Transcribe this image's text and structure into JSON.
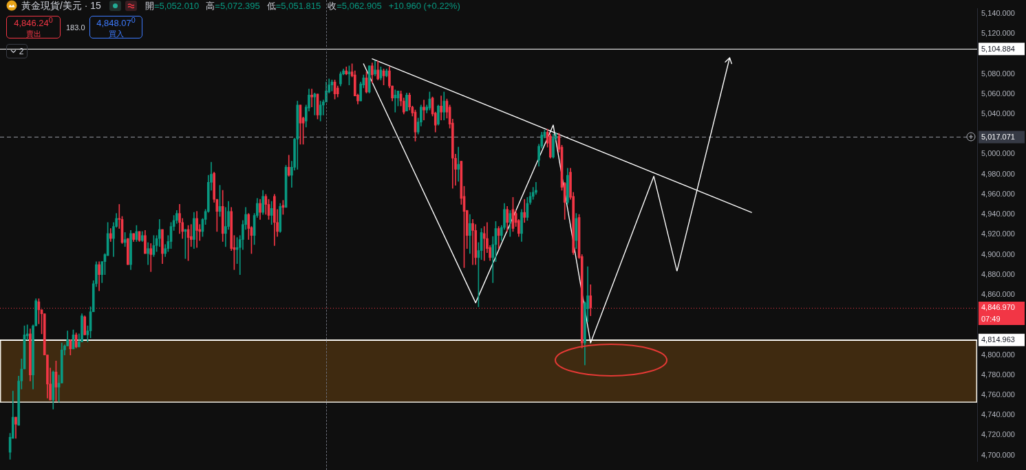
{
  "chart_data": {
    "type": "candlestick",
    "title": "黃金現貨/美元 · 15",
    "annotations": [
      "開=5,052.010",
      "高=5,072.395",
      "低=5,051.815",
      "收=5,062.905",
      "+10.960 (+0.22%)",
      "4,846.24$^{0}$",
      "賣出",
      "183.0",
      "4,848.07$^{0}$",
      "買入",
      "2",
      "07:49"
    ],
    "categories": [
      null,
      null,
      null,
      null,
      null,
      null,
      null,
      null,
      null,
      null,
      null,
      null,
      null,
      null,
      null,
      null,
      null,
      null,
      null,
      null,
      null,
      null,
      null,
      null,
      null,
      null,
      null,
      null,
      null,
      null,
      null,
      null,
      null,
      null,
      null,
      null,
      null,
      null,
      null,
      null,
      null,
      null,
      null,
      null,
      null,
      null,
      null,
      null,
      null,
      null,
      null,
      null,
      null,
      null,
      null,
      null,
      null,
      null,
      null,
      null,
      null,
      null,
      null,
      null,
      null,
      null,
      null,
      null,
      null,
      null,
      null,
      null,
      null,
      null,
      null,
      null,
      null,
      null,
      null,
      null,
      null,
      null,
      null,
      null,
      null,
      null,
      null,
      null,
      null,
      null,
      null,
      null,
      null,
      null,
      null,
      null,
      null,
      null,
      null,
      null,
      null,
      null,
      null,
      null,
      null,
      null,
      null,
      null,
      null,
      null,
      null,
      null,
      null,
      null,
      null,
      null,
      null,
      null,
      null,
      null,
      null,
      null,
      null,
      null,
      null,
      null,
      null,
      null,
      null,
      null,
      null,
      null,
      null,
      null,
      null,
      null,
      null,
      null,
      null,
      null,
      null,
      null,
      null,
      null,
      null,
      null,
      null,
      null,
      null,
      null,
      null,
      null,
      null,
      null,
      null,
      null,
      null,
      null,
      null,
      null,
      null,
      null,
      null,
      null,
      null,
      null,
      null,
      null,
      null,
      null,
      null,
      null,
      null,
      null,
      null,
      null,
      null,
      null,
      null,
      null,
      null,
      null,
      null,
      null,
      null,
      null,
      null,
      null,
      null,
      null,
      null,
      null,
      null,
      null,
      null,
      null,
      null,
      null,
      null,
      null,
      null,
      null,
      null,
      null,
      null,
      null,
      null,
      null,
      null,
      null,
      null,
      null,
      null,
      null,
      null,
      null,
      null,
      null,
      null,
      null,
      null,
      null,
      null,
      null,
      null,
      null,
      null,
      null,
      null,
      null,
      null,
      null,
      null,
      null,
      null,
      null,
      null,
      null,
      null,
      null,
      null,
      null,
      null,
      null,
      null,
      null,
      null,
      null,
      null,
      null,
      null,
      null,
      null,
      null,
      null,
      null,
      null,
      null,
      null,
      null,
      null,
      null,
      null,
      null,
      null,
      null,
      null,
      null,
      null,
      null,
      null,
      null,
      null,
      null,
      null,
      null,
      null,
      null,
      null,
      null,
      null,
      null,
      null,
      null,
      null,
      null,
      null,
      null,
      null,
      null,
      null,
      null,
      null,
      null,
      null,
      null,
      null,
      null,
      null,
      null,
      null,
      null,
      null,
      null,
      null,
      null,
      null,
      null,
      null,
      null,
      null,
      null,
      null,
      null,
      null,
      null,
      null,
      null,
      null,
      null,
      null,
      null,
      null,
      null,
      null,
      null,
      null,
      null,
      null,
      null,
      null,
      null,
      null,
      null,
      null,
      null,
      null,
      null,
      null,
      null
    ],
    "ohlc": [
      null,
      null,
      null,
      [
        4703,
        4722,
        4696,
        4718
      ],
      [
        4717,
        4764,
        4717,
        4738
      ],
      [
        4738,
        4738,
        4717,
        4731
      ],
      [
        4730,
        4779,
        4730,
        4774
      ],
      [
        4774,
        4796,
        4766,
        4786
      ],
      [
        4786,
        4829,
        4786,
        4820
      ],
      [
        4819,
        4830,
        4815,
        4821
      ],
      [
        4821,
        4826,
        4774,
        4780
      ],
      [
        4780,
        4830,
        4766,
        4829
      ],
      [
        4829,
        4856,
        4829,
        4854
      ],
      [
        4853,
        4856,
        4831,
        4845
      ],
      [
        4845,
        4845,
        4821,
        4841
      ],
      [
        4841,
        4841,
        4800,
        4800
      ],
      [
        4800,
        4800,
        4757,
        4771
      ],
      [
        4771,
        4787,
        4755,
        4755
      ],
      [
        4755,
        4784,
        4746,
        4783
      ],
      [
        4783,
        4794,
        4754,
        4768
      ],
      [
        4768,
        4780,
        4753,
        4772
      ],
      [
        4772,
        4812,
        4772,
        4805
      ],
      [
        4805,
        4810,
        4800,
        4809
      ],
      [
        4809,
        4824,
        4809,
        4815
      ],
      [
        4815,
        4815,
        4800,
        4806
      ],
      [
        4806,
        4825,
        4806,
        4820
      ],
      [
        4820,
        4822,
        4807,
        4808
      ],
      [
        4808,
        4821,
        4808,
        4813
      ],
      [
        4813,
        4841,
        4813,
        4839
      ],
      [
        4838,
        4839,
        4820,
        4820
      ],
      [
        4820,
        4829,
        4813,
        4824
      ],
      [
        4824,
        4848,
        4817,
        4843
      ],
      [
        4843,
        4874,
        4843,
        4871
      ],
      [
        4871,
        4893,
        4868,
        4890
      ],
      [
        4890,
        4893,
        4864,
        4880
      ],
      [
        4880,
        4893,
        4872,
        4893
      ],
      [
        4893,
        4901,
        4880,
        4900
      ],
      [
        4899,
        4932,
        4899,
        4921
      ],
      [
        4921,
        4926,
        4913,
        4916
      ],
      [
        4916,
        4932,
        4898,
        4928
      ],
      [
        4928,
        4941,
        4927,
        4936
      ],
      [
        4936,
        4950,
        4926,
        4935
      ],
      [
        4935,
        4938,
        4911,
        4912
      ],
      [
        4912,
        4922,
        4908,
        4915
      ],
      [
        4916,
        4916,
        4890,
        4890
      ],
      [
        4890,
        4924,
        4885,
        4921
      ],
      [
        4921,
        4921,
        4913,
        4915
      ],
      [
        4915,
        4929,
        4913,
        4923
      ],
      [
        4923,
        4923,
        4913,
        4914
      ],
      [
        4914,
        4923,
        4913,
        4919
      ],
      [
        4919,
        4924,
        4901,
        4901
      ],
      [
        4901,
        4912,
        4890,
        4906
      ],
      [
        4906,
        4911,
        4883,
        4900
      ],
      [
        4900,
        4919,
        4898,
        4909
      ],
      [
        4909,
        4919,
        4903,
        4916
      ],
      [
        4916,
        4935,
        4908,
        4925
      ],
      [
        4925,
        4925,
        4891,
        4901
      ],
      [
        4901,
        4910,
        4898,
        4906
      ],
      [
        4906,
        4919,
        4903,
        4913
      ],
      [
        4913,
        4932,
        4906,
        4928
      ],
      [
        4928,
        4939,
        4924,
        4934
      ],
      [
        4934,
        4944,
        4931,
        4941
      ],
      [
        4941,
        4950,
        4921,
        4932
      ],
      [
        4932,
        4936,
        4916,
        4923
      ],
      [
        4923,
        4925,
        4896,
        4925
      ],
      [
        4925,
        4929,
        4894,
        4917
      ],
      [
        4918,
        4930,
        4908,
        4915
      ],
      [
        4915,
        4942,
        4906,
        4936
      ],
      [
        4936,
        4943,
        4907,
        4924
      ],
      [
        4925,
        4930,
        4914,
        4923
      ],
      [
        4923,
        4936,
        4918,
        4935
      ],
      [
        4935,
        4945,
        4930,
        4943
      ],
      [
        4943,
        4979,
        4942,
        4972
      ],
      [
        4972,
        4992,
        4964,
        4980
      ],
      [
        4981,
        4982,
        4952,
        4955
      ],
      [
        4955,
        4955,
        4923,
        4943
      ],
      [
        4943,
        4969,
        4938,
        4948
      ],
      [
        4948,
        4964,
        4913,
        4921
      ],
      [
        4921,
        4947,
        4908,
        4928
      ],
      [
        4928,
        4953,
        4925,
        4943
      ],
      [
        4943,
        4947,
        4904,
        4906
      ],
      [
        4907,
        4919,
        4885,
        4905
      ],
      [
        4905,
        4917,
        4891,
        4907
      ],
      [
        4907,
        4919,
        4880,
        4915
      ],
      [
        4915,
        4934,
        4905,
        4930
      ],
      [
        4930,
        4947,
        4925,
        4940
      ],
      [
        4940,
        4941,
        4915,
        4926
      ],
      [
        4927,
        4928,
        4901,
        4919
      ],
      [
        4919,
        4941,
        4910,
        4939
      ],
      [
        4939,
        4956,
        4937,
        4951
      ],
      [
        4951,
        4955,
        4935,
        4942
      ],
      [
        4942,
        4964,
        4940,
        4958
      ],
      [
        4958,
        4960,
        4940,
        4950
      ],
      [
        4950,
        4955,
        4935,
        4939
      ],
      [
        4939,
        4953,
        4930,
        4946
      ],
      [
        4958,
        4960,
        4909,
        4932
      ],
      [
        4932,
        4945,
        4918,
        4923
      ],
      [
        4923,
        4951,
        4922,
        4948
      ],
      [
        4949,
        4954,
        4940,
        4947
      ],
      [
        4947,
        4989,
        4947,
        4987
      ],
      [
        4987,
        4999,
        4978,
        4979
      ],
      [
        4979,
        4993,
        4967,
        4987
      ],
      [
        4987,
        5016,
        4984,
        5015
      ],
      [
        5015,
        5053,
        4985,
        5049
      ],
      [
        5049,
        5049,
        5010,
        5031
      ],
      [
        5036,
        5037,
        5010,
        5031
      ],
      [
        5033,
        5049,
        5027,
        5047
      ],
      [
        5046,
        5065,
        5043,
        5059
      ],
      [
        5059,
        5065,
        5047,
        5057
      ],
      [
        5057,
        5061,
        5039,
        5060
      ],
      [
        5060,
        5060,
        5035,
        5039
      ],
      [
        5039,
        5053,
        5033,
        5049
      ],
      [
        5049,
        5054,
        5039,
        5052
      ],
      [
        5052,
        5072,
        5052,
        5063
      ],
      [
        5062,
        5075,
        5061,
        5069
      ],
      [
        5069,
        5074,
        5063,
        5072
      ],
      [
        5072,
        5074,
        5055,
        5060
      ],
      [
        5066,
        5068,
        5057,
        5060
      ],
      [
        5070,
        5082,
        5068,
        5080
      ],
      [
        5080,
        5085,
        5079,
        5083
      ],
      [
        5083,
        5087,
        5079,
        5080
      ],
      [
        5080,
        5088,
        5069,
        5082
      ],
      [
        5082,
        5090,
        5077,
        5078
      ],
      [
        5079,
        5083,
        5058,
        5058
      ],
      [
        5059,
        5060,
        5050,
        5053
      ],
      [
        5053,
        5072,
        5053,
        5070
      ],
      [
        5069,
        5079,
        5066,
        5076
      ],
      [
        5076,
        5082,
        5061,
        5062
      ],
      [
        5062,
        5088,
        5061,
        5088
      ],
      [
        5088,
        5091,
        5071,
        5079
      ],
      [
        5080,
        5093,
        5078,
        5084
      ],
      [
        5084,
        5093,
        5074,
        5075
      ],
      [
        5076,
        5087,
        5074,
        5084
      ],
      [
        5083,
        5085,
        5069,
        5078
      ],
      [
        5078,
        5085,
        5077,
        5083
      ],
      [
        5083,
        5087,
        5066,
        5068
      ],
      [
        5068,
        5068,
        5053,
        5056
      ],
      [
        5056,
        5064,
        5042,
        5059
      ],
      [
        5056,
        5063,
        5048,
        5063
      ],
      [
        5060,
        5063,
        5048,
        5053
      ],
      [
        5053,
        5056,
        5040,
        5042
      ],
      [
        5043,
        5061,
        5043,
        5059
      ],
      [
        5059,
        5061,
        5044,
        5047
      ],
      [
        5047,
        5048,
        5038,
        5041
      ],
      [
        5042,
        5044,
        5013,
        5022
      ],
      [
        5022,
        5036,
        5020,
        5032
      ],
      [
        5032,
        5049,
        5028,
        5047
      ],
      [
        5047,
        5054,
        5034,
        5044
      ],
      [
        5044,
        5049,
        5041,
        5047
      ],
      [
        5046,
        5062,
        5044,
        5055
      ],
      [
        5056,
        5057,
        5038,
        5040
      ],
      [
        5041,
        5042,
        5022,
        5029
      ],
      [
        5030,
        5049,
        5029,
        5048
      ],
      [
        5048,
        5058,
        5034,
        5042
      ],
      [
        5042,
        5062,
        5034,
        5053
      ],
      [
        5053,
        5055,
        5036,
        5042
      ],
      [
        5047,
        5049,
        5026,
        5030
      ],
      [
        5031,
        5035,
        4966,
        4996
      ],
      [
        4996,
        5000,
        4969,
        4985
      ],
      [
        4985,
        5007,
        4973,
        4990
      ],
      [
        4993,
        4993,
        4950,
        4956
      ],
      [
        4958,
        4968,
        4887,
        4943
      ],
      [
        4944,
        4944,
        4906,
        4919
      ],
      [
        4919,
        4940,
        4901,
        4931
      ],
      [
        4931,
        4935,
        4890,
        4924
      ],
      [
        4924,
        4930,
        4890,
        4897
      ],
      [
        4897,
        4912,
        4848,
        4904
      ],
      [
        4904,
        4926,
        4895,
        4922
      ],
      [
        4921,
        4928,
        4894,
        4916
      ],
      [
        4916,
        4932,
        4902,
        4906
      ],
      [
        4907,
        4909,
        4894,
        4897
      ],
      [
        4897,
        4918,
        4872,
        4910
      ],
      [
        4910,
        4933,
        4893,
        4926
      ],
      [
        4926,
        4928,
        4906,
        4919
      ],
      [
        4919,
        4929,
        4914,
        4927
      ],
      [
        4927,
        4951,
        4925,
        4945
      ],
      [
        4945,
        4948,
        4923,
        4932
      ],
      [
        4932,
        4944,
        4918,
        4941
      ],
      [
        4945,
        4957,
        4923,
        4926
      ],
      [
        4941,
        4944,
        4928,
        4932
      ],
      [
        4934,
        4935,
        4918,
        4921
      ],
      [
        4921,
        4945,
        4913,
        4942
      ],
      [
        4942,
        4955,
        4932,
        4937
      ],
      [
        4937,
        4957,
        4934,
        4951
      ],
      [
        4952,
        4962,
        4950,
        4958
      ],
      [
        4958,
        4967,
        4955,
        4962
      ],
      [
        4962,
        4972,
        4960,
        4964
      ],
      [
        4994,
        5010,
        4988,
        5008
      ],
      [
        5008,
        5022,
        5006,
        5019
      ],
      [
        5018,
        5024,
        5016,
        5022
      ],
      [
        5022,
        5025,
        5007,
        5011
      ],
      [
        5018,
        5020,
        4996,
        4997
      ],
      [
        4997,
        5020,
        4996,
        5016
      ],
      [
        5016,
        5021,
        5014,
        5018
      ],
      [
        5018,
        5021,
        5002,
        5005
      ],
      [
        5007,
        5009,
        4964,
        4967
      ],
      [
        4971,
        4972,
        4935,
        4952
      ],
      [
        4952,
        4986,
        4950,
        4979
      ],
      [
        4982,
        4986,
        4955,
        4957
      ],
      [
        4958,
        4962,
        4900,
        4902
      ],
      [
        4914,
        4941,
        4906,
        4936
      ],
      [
        4937,
        4940,
        4896,
        4897
      ],
      [
        4898,
        4900,
        4807,
        4812
      ],
      [
        4812,
        4853,
        4790,
        4852
      ],
      [
        4846,
        4888,
        4833,
        4859
      ],
      [
        4859,
        4870,
        4839,
        4847
      ],
      null,
      null,
      null,
      null,
      null,
      null,
      null,
      null,
      null,
      null,
      null,
      null,
      null,
      null,
      null,
      null,
      null,
      null,
      null,
      null,
      null,
      null,
      null,
      null,
      null,
      null,
      null,
      null,
      null,
      null,
      null,
      null,
      null,
      null,
      null,
      null,
      null,
      null,
      null,
      null,
      null,
      null,
      null,
      null,
      null,
      null,
      null,
      null,
      null,
      null,
      null,
      null,
      null,
      null,
      null,
      null,
      null,
      null,
      null,
      null,
      null,
      null,
      null,
      null,
      null,
      null,
      null,
      null,
      null,
      null,
      null,
      null,
      null,
      null,
      null,
      null,
      null,
      null,
      null,
      null,
      null,
      null,
      null,
      null,
      null,
      null,
      null,
      null,
      null,
      null,
      null,
      null,
      null,
      null,
      null,
      null,
      null,
      null,
      null,
      null,
      null,
      null,
      null,
      null,
      null,
      null,
      null,
      null,
      null,
      null,
      null,
      null,
      null,
      null,
      null,
      null,
      null,
      null,
      null,
      null,
      null,
      null,
      null,
      null,
      null,
      null,
      null,
      null,
      null,
      null,
      null,
      null,
      null,
      null
    ],
    "series": [
      {
        "type": "line",
        "color": "#ffffff",
        "values": [
          null,
          null,
          null,
          null,
          null,
          null,
          null,
          null,
          null,
          null,
          null,
          null,
          null,
          null,
          null,
          null,
          null,
          null,
          null,
          null,
          null,
          null,
          null,
          null,
          null,
          null,
          null,
          null,
          null,
          null,
          null,
          null,
          null,
          null,
          null,
          null,
          null,
          null,
          null,
          null,
          null,
          null,
          null,
          null,
          null,
          null,
          null,
          null,
          null,
          null,
          null,
          null,
          null,
          null,
          null,
          null,
          null,
          null,
          null,
          null,
          null,
          null,
          null,
          null,
          null,
          null,
          null,
          null,
          null,
          null,
          null,
          null,
          null,
          null,
          null,
          null,
          null,
          null,
          null,
          null,
          null,
          null,
          null,
          null,
          null,
          null,
          null,
          null,
          null,
          null,
          null,
          null,
          null,
          null,
          null,
          null,
          null,
          null,
          null,
          null,
          null,
          null,
          null,
          null,
          null,
          null,
          null,
          null,
          null,
          null,
          null,
          null,
          null,
          null,
          null,
          null,
          null,
          null,
          null,
          null,
          null,
          null,
          null,
          null,
          null,
          null,
          null,
          null,
          null,
          5095,
          null,
          null,
          null,
          null,
          null,
          null,
          null,
          null,
          null,
          null,
          null,
          null,
          null,
          null,
          null,
          null,
          null,
          null,
          null,
          null,
          null,
          null,
          null,
          null,
          null,
          null,
          null,
          null,
          null,
          null,
          null,
          null,
          null,
          null,
          null,
          null,
          null,
          null,
          null,
          null,
          null,
          null,
          null,
          null,
          null,
          null,
          null,
          null,
          null,
          null,
          null,
          null,
          null,
          null,
          null,
          null,
          null,
          null,
          null,
          null,
          null,
          null,
          null,
          null,
          null,
          null,
          null,
          null,
          null,
          null,
          null,
          null,
          null,
          null,
          null,
          null,
          null,
          null,
          null,
          null,
          null,
          null,
          null,
          null,
          null,
          null,
          null,
          null,
          null,
          null,
          null,
          null,
          null,
          null,
          null,
          null,
          null,
          null,
          null,
          null,
          null,
          null,
          null,
          null,
          null,
          null,
          null,
          null,
          null,
          null,
          null,
          null,
          null,
          null,
          null,
          null,
          null,
          null,
          null,
          null,
          null,
          null,
          null,
          null,
          null,
          null,
          null,
          null,
          null,
          null,
          null,
          4942,
          null,
          null,
          null,
          null,
          null,
          null,
          null,
          null,
          null,
          null,
          null,
          null,
          null,
          null,
          null,
          null,
          null,
          null,
          null,
          null,
          null,
          null,
          null,
          null,
          null,
          null,
          null,
          null,
          null,
          null,
          null,
          null,
          null,
          null,
          null,
          null,
          null,
          null,
          null,
          null,
          null,
          null,
          null,
          null,
          null,
          null,
          null,
          null,
          null,
          null,
          null,
          null,
          null,
          null,
          null,
          null,
          null,
          null,
          null,
          null,
          null,
          null,
          null,
          null,
          null,
          null,
          null,
          null,
          null,
          null,
          null,
          null,
          null,
          null,
          null,
          null,
          null,
          null
        ]
      },
      {
        "type": "line",
        "color": "#ffffff",
        "values": [
          null,
          null,
          null,
          null,
          null,
          null,
          null,
          null,
          null,
          null,
          null,
          null,
          null,
          null,
          null,
          null,
          null,
          null,
          null,
          null,
          null,
          null,
          null,
          null,
          null,
          null,
          null,
          null,
          null,
          null,
          null,
          null,
          null,
          null,
          null,
          null,
          null,
          null,
          null,
          null,
          null,
          null,
          null,
          null,
          null,
          null,
          null,
          null,
          null,
          null,
          null,
          null,
          null,
          null,
          null,
          null,
          null,
          null,
          null,
          null,
          null,
          null,
          null,
          null,
          null,
          null,
          null,
          null,
          null,
          null,
          null,
          null,
          null,
          null,
          null,
          null,
          null,
          null,
          null,
          null,
          null,
          null,
          null,
          null,
          null,
          null,
          null,
          null,
          null,
          null,
          null,
          null,
          null,
          null,
          null,
          null,
          null,
          null,
          null,
          null,
          null,
          null,
          null,
          null,
          null,
          null,
          null,
          null,
          null,
          null,
          null,
          null,
          null,
          null,
          null,
          null,
          null,
          null,
          null,
          null,
          null,
          null,
          null,
          null,
          null,
          null,
          5090,
          null,
          null,
          null,
          null,
          null,
          null,
          null,
          null,
          null,
          null,
          null,
          null,
          null,
          null,
          null,
          null,
          null,
          null,
          null,
          null,
          null,
          null,
          null,
          null,
          null,
          null,
          null,
          null,
          null,
          null,
          null,
          null,
          null,
          null,
          null,
          null,
          null,
          null,
          4852,
          null,
          null,
          null,
          null,
          null,
          null,
          null,
          null,
          null,
          null,
          null,
          null,
          null,
          null,
          null,
          null,
          null,
          null,
          null,
          null,
          null,
          null,
          null,
          null,
          null,
          null,
          5029,
          null,
          null,
          null,
          null,
          null,
          null,
          null,
          null,
          null,
          null,
          null,
          null,
          4812,
          null,
          null,
          null,
          null,
          null,
          null,
          null,
          null,
          null,
          null,
          null,
          null,
          null,
          null,
          null,
          null,
          null,
          null,
          null,
          null,
          null,
          4978,
          null,
          null,
          null,
          null,
          null,
          null,
          null,
          4884,
          null,
          null,
          null,
          null,
          null,
          null,
          null,
          null,
          null,
          null,
          null,
          null,
          null,
          null,
          null,
          null,
          null,
          null,
          null,
          null,
          null,
          null,
          null,
          null,
          null,
          null,
          null,
          null,
          null,
          null,
          null,
          null,
          null,
          null,
          null,
          null,
          null,
          null,
          null,
          null,
          null,
          null,
          null,
          null,
          null,
          null,
          null,
          null,
          null,
          null,
          null,
          null,
          null,
          null,
          null,
          null,
          null,
          null,
          null,
          null,
          null,
          null,
          null,
          null,
          null,
          null,
          null,
          null,
          null,
          null,
          null,
          null,
          null,
          null,
          null,
          null,
          null,
          null,
          null,
          null,
          null,
          null,
          null,
          null,
          null,
          null,
          null,
          null,
          null,
          null,
          null,
          null,
          null,
          null,
          null,
          null,
          null,
          null,
          null,
          null,
          null,
          null,
          null,
          null
        ]
      }
    ],
    "ylim": [
      4694,
      5145
    ],
    "yticks": [
      {
        "value": 4700,
        "label": "4,700.000"
      },
      {
        "value": 4720,
        "label": "4,720.000"
      },
      {
        "value": 4740,
        "label": "4,740.000"
      },
      {
        "value": 4760,
        "label": "4,760.000"
      },
      {
        "value": 4780,
        "label": "4,780.000"
      },
      {
        "value": 4800,
        "label": "4,800.000"
      },
      {
        "value": 4860,
        "label": "4,860.000"
      },
      {
        "value": 4880,
        "label": "4,880.000"
      },
      {
        "value": 4900,
        "label": "4,900.000"
      },
      {
        "value": 4920,
        "label": "4,920.000"
      },
      {
        "value": 4940,
        "label": "4,940.000"
      },
      {
        "value": 4960,
        "label": "4,960.000"
      },
      {
        "value": 4980,
        "label": "4,980.000"
      },
      {
        "value": 5000,
        "label": "5,000.000"
      },
      {
        "value": 5040,
        "label": "5,040.000"
      },
      {
        "value": 5060,
        "label": "5,060.000"
      },
      {
        "value": 5080,
        "label": "5,080.000"
      },
      {
        "value": 5120,
        "label": "5,120.000"
      },
      {
        "value": 5140,
        "label": "5,140.000"
      }
    ],
    "ref_lines": [
      {
        "axis": "y",
        "value": 5104.884,
        "label": "5,104.884",
        "color": "#ffffff"
      },
      {
        "axis": "y",
        "value": 5017.071,
        "label": "5,017.071",
        "color": "#9598a1",
        "line_style": "dashed"
      },
      {
        "axis": "y",
        "value": 4846.97,
        "label": "4,846.970",
        "color": "#f23645",
        "line_style": "dotted"
      },
      {
        "axis": "y",
        "value": 4814.963,
        "label": "4,814.963",
        "color": "#ffffff"
      }
    ],
    "bands": [
      {
        "axis": "y",
        "from": 4753,
        "to": 4814.963,
        "color": "#3f2a10"
      }
    ],
    "tick_labels": "y"
  }
}
